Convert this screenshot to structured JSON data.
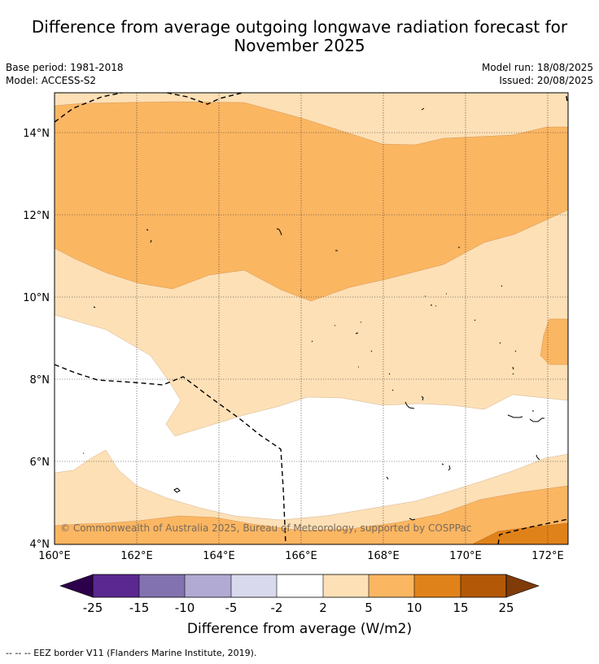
{
  "title_line1": "Difference from average outgoing longwave radiation forecast for",
  "title_line2": "November 2025",
  "base_period": "Base period: 1981-2018",
  "model": "Model: ACCESS-S2",
  "model_run": "Model run: 18/08/2025",
  "issued": "Issued: 20/08/2025",
  "copyright": "© Commonwealth of Australia 2025, Bureau of Meteorology, supported by COSPPac",
  "lat_ticks": [
    "14°N",
    "12°N",
    "10°N",
    "8°N",
    "6°N",
    "4°N"
  ],
  "lon_ticks": [
    "160°E",
    "162°E",
    "164°E",
    "166°E",
    "168°E",
    "170°E",
    "172°E"
  ],
  "colorbar": {
    "label": "Difference from average (W/m2)",
    "ticks": [
      "-25",
      "-15",
      "-10",
      "-5",
      "-2",
      "2",
      "5",
      "10",
      "15",
      "25"
    ],
    "colors": {
      "below_-25": "#2d004b",
      "-25_-15": "#5a2890",
      "-15_-10": "#8273b0",
      "-10_-5": "#b1aad3",
      "-5_-2": "#d8d9ec",
      "-2_2": "#ffffff",
      "2_5": "#fde0b6",
      "5_10": "#fbb662",
      "10_15": "#e0821a",
      "15_25": "#b35806",
      "above_25": "#7f3b08"
    }
  },
  "footnote": "--  --  -- EEZ border V11 (Flanders Marine Institute, 2019)."
}
